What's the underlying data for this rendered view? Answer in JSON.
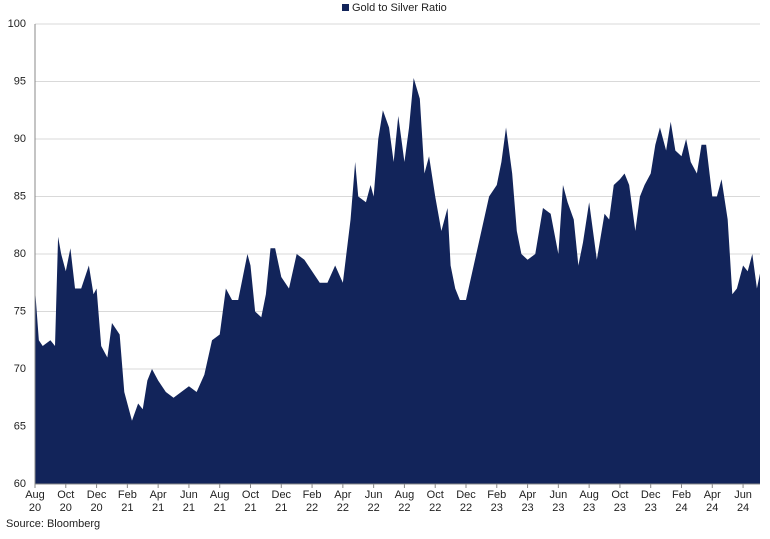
{
  "chart_data": {
    "type": "area",
    "source": "Source: Bloomberg",
    "series": [
      {
        "name": "Gold to Silver Ratio",
        "color": "#12245a",
        "values": [
          77,
          72.5,
          72,
          72.5,
          72,
          81.5,
          80,
          78.5,
          80.5,
          77,
          77,
          79,
          76.5,
          77,
          72,
          71,
          74,
          73,
          68,
          67,
          65.5,
          67,
          66.5,
          69,
          70,
          69,
          68,
          67.5,
          68,
          68.5,
          68,
          69.5,
          72.5,
          73,
          77,
          76,
          76,
          78,
          80,
          79,
          75,
          74.5,
          76.5,
          80.5,
          80.5,
          78,
          77,
          80,
          79.5,
          78.5,
          77.5,
          77.5,
          79,
          77.5,
          83,
          88,
          85,
          84.5,
          86,
          85,
          90,
          92.5,
          91,
          88,
          92,
          88,
          91,
          95.3,
          93.5,
          87,
          88.5,
          85,
          82,
          84,
          79,
          77,
          76,
          76,
          79,
          82,
          85,
          86,
          88,
          91,
          87,
          82,
          80,
          79.5,
          80,
          84,
          83.5,
          80,
          86,
          84.5,
          83,
          79,
          81,
          84.5,
          79.5,
          83.5,
          83,
          86,
          86.5,
          87,
          86,
          82,
          85,
          86,
          87,
          89.5,
          91,
          89,
          91.5,
          89,
          88.5,
          90,
          88,
          87,
          89.5,
          89.5,
          85,
          85,
          86.5,
          83,
          76.5,
          77,
          79,
          78.5,
          80,
          77,
          78.3
        ]
      }
    ],
    "x": [
      0,
      0.25,
      0.5,
      1,
      1.3,
      1.5,
      1.7,
      2,
      2.3,
      2.6,
      3,
      3.5,
      3.8,
      4,
      4.3,
      4.7,
      5,
      5.5,
      5.8,
      6,
      6.3,
      6.7,
      7,
      7.3,
      7.6,
      8,
      8.5,
      9,
      9.5,
      10,
      10.5,
      11,
      11.5,
      12,
      12.4,
      12.8,
      13.2,
      13.5,
      13.8,
      14,
      14.3,
      14.7,
      15,
      15.3,
      15.6,
      16,
      16.5,
      17,
      17.5,
      18,
      18.5,
      19,
      19.5,
      20,
      20.5,
      20.8,
      21,
      21.5,
      21.8,
      22,
      22.3,
      22.6,
      23,
      23.3,
      23.6,
      24,
      24.3,
      24.6,
      25,
      25.3,
      25.6,
      26,
      26.4,
      26.8,
      27,
      27.3,
      27.6,
      28,
      28.5,
      29,
      29.5,
      30,
      30.3,
      30.6,
      31,
      31.3,
      31.6,
      32,
      32.5,
      33,
      33.5,
      34,
      34.3,
      34.6,
      35,
      35.3,
      35.6,
      36,
      36.5,
      37,
      37.3,
      37.6,
      38,
      38.3,
      38.6,
      39,
      39.3,
      39.6,
      40,
      40.3,
      40.6,
      41,
      41.3,
      41.6,
      42,
      42.3,
      42.6,
      43,
      43.3,
      43.6,
      44,
      44.3,
      44.6,
      45,
      45.3,
      45.6,
      46,
      46.3,
      46.6,
      46.9,
      47.1
    ],
    "xlim": [
      0,
      47.1
    ],
    "xticks": [
      {
        "value": 0,
        "label": "Aug\n20"
      },
      {
        "value": 2,
        "label": "Oct\n20"
      },
      {
        "value": 4,
        "label": "Dec\n20"
      },
      {
        "value": 6,
        "label": "Feb\n21"
      },
      {
        "value": 8,
        "label": "Apr\n21"
      },
      {
        "value": 10,
        "label": "Jun\n21"
      },
      {
        "value": 12,
        "label": "Aug\n21"
      },
      {
        "value": 14,
        "label": "Oct\n21"
      },
      {
        "value": 16,
        "label": "Dec\n21"
      },
      {
        "value": 18,
        "label": "Feb\n22"
      },
      {
        "value": 20,
        "label": "Apr\n22"
      },
      {
        "value": 22,
        "label": "Jun\n22"
      },
      {
        "value": 24,
        "label": "Aug\n22"
      },
      {
        "value": 26,
        "label": "Oct\n22"
      },
      {
        "value": 28,
        "label": "Dec\n22"
      },
      {
        "value": 30,
        "label": "Feb\n23"
      },
      {
        "value": 32,
        "label": "Apr\n23"
      },
      {
        "value": 34,
        "label": "Jun\n23"
      },
      {
        "value": 36,
        "label": "Aug\n23"
      },
      {
        "value": 38,
        "label": "Oct\n23"
      },
      {
        "value": 40,
        "label": "Dec\n23"
      },
      {
        "value": 42,
        "label": "Feb\n24"
      },
      {
        "value": 44,
        "label": "Apr\n24"
      },
      {
        "value": 46,
        "label": "Jun\n24"
      }
    ],
    "ylim": [
      60,
      100
    ],
    "yticks": [
      60,
      65,
      70,
      75,
      80,
      85,
      90,
      95,
      100
    ],
    "grid": true,
    "legend": "top"
  }
}
